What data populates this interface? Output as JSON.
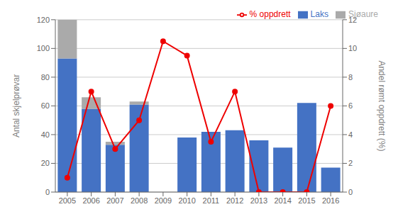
{
  "chart_data": {
    "type": "bar",
    "categories": [
      "2005",
      "2006",
      "2007",
      "2008",
      "2009",
      "2010",
      "2011",
      "2012",
      "2013",
      "2014",
      "2015",
      "2016"
    ],
    "stacked": true,
    "series": [
      {
        "name": "Laks",
        "type": "bar",
        "color": "#4472C4",
        "values": [
          93,
          58,
          33,
          61,
          0,
          38,
          42,
          43,
          36,
          31,
          62,
          17
        ]
      },
      {
        "name": "Sjøaure",
        "type": "bar",
        "color": "#AAAAAA",
        "values": [
          27,
          8,
          2,
          2,
          0,
          0,
          0,
          0,
          0,
          0,
          0,
          0
        ]
      },
      {
        "name": "% oppdrett",
        "type": "line",
        "axis": "y2",
        "color": "#EE0000",
        "marker": "circle",
        "values": [
          1.0,
          7.0,
          3.0,
          5.0,
          10.5,
          9.5,
          3.5,
          7.0,
          0.0,
          0.0,
          0.0,
          6.0
        ]
      }
    ],
    "ylabel": "Antal skjelprøvar",
    "y2label": "Andel rømt oppdrett (%)",
    "ylim": [
      0,
      120
    ],
    "yticks": [
      0,
      20,
      40,
      60,
      80,
      100,
      120
    ],
    "y2lim": [
      0,
      12
    ],
    "y2ticks": [
      0,
      2,
      4,
      6,
      8,
      10,
      12
    ],
    "grid": true,
    "legend": "upper right"
  }
}
